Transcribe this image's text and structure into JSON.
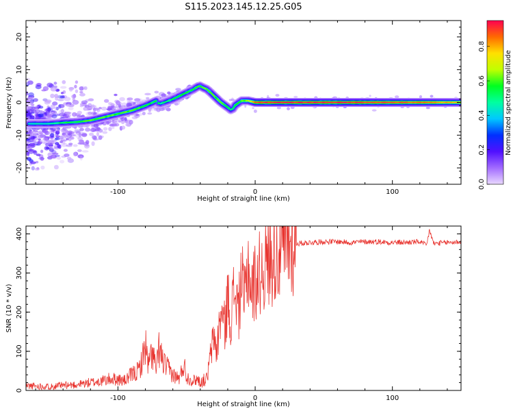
{
  "figure": {
    "title": "S115.2023.145.12.25.G05"
  },
  "chart_data": [
    {
      "type": "heatmap",
      "xlabel": "Height of straight line (km)",
      "ylabel": "Frequency (Hz)",
      "xlim": [
        -167,
        150
      ],
      "ylim": [
        -25,
        25
      ],
      "xticks": [
        -100,
        0,
        100
      ],
      "xtick_labels": [
        "-100",
        "0",
        "100"
      ],
      "yticks": [
        -20,
        -10,
        0,
        10,
        20
      ],
      "ytick_labels": [
        "-20",
        "-10",
        "0",
        "10",
        "20"
      ],
      "grid": false,
      "colormap": [
        "#e9d8ff",
        "#a26bff",
        "#5010ff",
        "#0030ff",
        "#00c8ff",
        "#00ffa0",
        "#00ff20",
        "#c0ff00",
        "#ffe000",
        "#ff6a00",
        "#ff0050"
      ],
      "colorbar": {
        "label": "Normalized spectral amplitude",
        "range": [
          0,
          0.95
        ],
        "ticks": [
          0.0,
          0.2,
          0.4,
          0.6,
          0.8
        ],
        "tick_labels": [
          "0.0",
          "0.2",
          "0.4",
          "0.6",
          "0.8"
        ]
      },
      "ridge": {
        "x": [
          -165,
          -150,
          -140,
          -130,
          -120,
          -110,
          -100,
          -90,
          -80,
          -72,
          -70,
          -65,
          -60,
          -55,
          -50,
          -45,
          -42,
          -40,
          -38,
          -35,
          -30,
          -25,
          -20,
          -17,
          -15,
          -10,
          -5,
          0,
          10,
          20,
          40,
          60,
          80,
          100,
          120,
          140,
          150
        ],
        "freq": [
          -6.5,
          -6.5,
          -6.2,
          -6,
          -5.5,
          -4.5,
          -3.5,
          -2.5,
          -1,
          0.5,
          -0.5,
          0.2,
          1,
          2,
          3,
          4,
          4.8,
          5,
          4.5,
          4,
          2,
          0,
          -1.5,
          -2.5,
          -1,
          0.5,
          0.5,
          0,
          0,
          0,
          0,
          0,
          0,
          0,
          0,
          0,
          0
        ],
        "amplitude": [
          0.45,
          0.45,
          0.55,
          0.55,
          0.6,
          0.6,
          0.6,
          0.6,
          0.55,
          0.55,
          0.5,
          0.5,
          0.55,
          0.55,
          0.55,
          0.55,
          0.6,
          0.6,
          0.6,
          0.6,
          0.6,
          0.6,
          0.55,
          0.5,
          0.55,
          0.6,
          0.65,
          0.9,
          0.92,
          0.92,
          0.92,
          0.92,
          0.9,
          0.88,
          0.85,
          0.8,
          0.78
        ]
      }
    },
    {
      "type": "line",
      "xlabel": "Height of straight line (km)",
      "ylabel": "SNR (10 * v/v)",
      "xlim": [
        -167,
        150
      ],
      "ylim": [
        0,
        420
      ],
      "xticks": [
        -100,
        0,
        100
      ],
      "xtick_labels": [
        "-100",
        "0",
        "100"
      ],
      "yticks": [
        0,
        100,
        200,
        300,
        400
      ],
      "ytick_labels": [
        "0",
        "100",
        "200",
        "300",
        "400"
      ],
      "grid": false,
      "color": "#e8332e",
      "series": [
        {
          "x": [
            -167,
            -150,
            -130,
            -120,
            -110,
            -105,
            -100,
            -95,
            -90,
            -85,
            -82,
            -80,
            -78,
            -75,
            -72,
            -70,
            -68,
            -65,
            -62,
            -60,
            -58,
            -55,
            -52,
            -50,
            -48,
            -45,
            -42,
            -40,
            -38,
            -35,
            -33,
            -30,
            -28,
            -25,
            -22,
            -20,
            -18,
            -15,
            -12,
            -10,
            -8,
            -5,
            -3,
            0,
            5,
            10,
            15,
            20,
            25,
            30,
            40,
            50,
            60,
            70,
            80,
            90,
            100,
            110,
            120,
            125,
            127,
            130,
            140,
            150
          ],
          "snr": [
            12,
            10,
            15,
            20,
            25,
            30,
            28,
            25,
            40,
            50,
            80,
            120,
            60,
            100,
            50,
            110,
            80,
            60,
            50,
            40,
            35,
            30,
            70,
            35,
            30,
            25,
            30,
            20,
            25,
            30,
            80,
            140,
            100,
            200,
            160,
            240,
            180,
            260,
            200,
            300,
            220,
            330,
            250,
            280,
            310,
            330,
            350,
            360,
            370,
            375,
            378,
            380,
            380,
            378,
            380,
            380,
            378,
            378,
            380,
            370,
            410,
            375,
            378,
            380
          ]
        }
      ]
    }
  ]
}
